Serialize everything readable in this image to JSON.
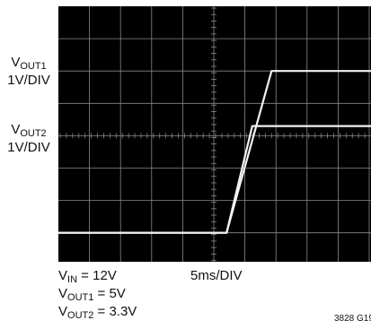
{
  "chart_data": {
    "type": "line",
    "title": "",
    "x_scale_label": "5ms/DIV",
    "x_unit_per_div_ms": 5,
    "x_divisions": 10,
    "x_range_ms": [
      -27.5,
      22.5
    ],
    "y_divisions": 8,
    "colors": {
      "screen": "#000000",
      "grid": "#8a8a8a",
      "trace": "#f2f2f2"
    },
    "grid": true,
    "series": [
      {
        "name": "VOUT1",
        "units_per_div": "1V/DIV",
        "y_reference_div": 0,
        "x_ms": [
          -27.5,
          -0.6,
          6.6,
          22.5
        ],
        "y_volts": [
          0,
          0,
          5,
          5
        ]
      },
      {
        "name": "VOUT2",
        "units_per_div": "1V/DIV",
        "y_reference_div": 0,
        "x_ms": [
          -27.5,
          -0.6,
          3.5,
          22.5
        ],
        "y_volts": [
          0,
          0,
          3.3,
          3.3
        ]
      }
    ]
  },
  "labels": {
    "vout1_sym": "V",
    "vout1_sub": "OUT1",
    "vout1_scale": "1V/DIV",
    "vout2_sym": "V",
    "vout2_sub": "OUT2",
    "vout2_scale": "1V/DIV"
  },
  "notes": {
    "vin_sym": "V",
    "vin_sub": "IN",
    "vin_val": " = 12V",
    "vout1_sym": "V",
    "vout1_sub": "OUT1",
    "vout1_val": " = 5V",
    "vout2_sym": "V",
    "vout2_sub": "OUT2",
    "vout2_val": " = 3.3V",
    "timebase": "5ms/DIV"
  },
  "figure_id": "3828 G19"
}
